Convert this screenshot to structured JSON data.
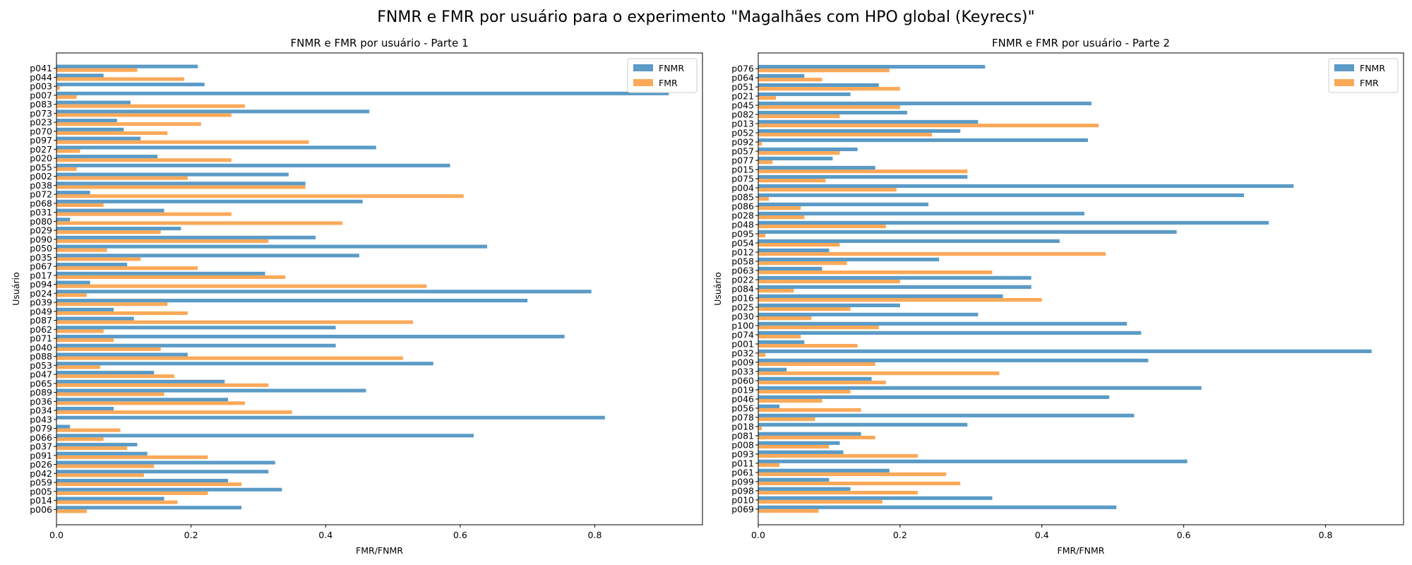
{
  "suptitle": "FNMR e FMR por usuário para o experimento \"Magalhães com HPO global (Keyrecs)\"",
  "colors": {
    "FNMR": "#5b9bc6",
    "FMR": "#fba959"
  },
  "chart_data": [
    {
      "type": "bar",
      "orientation": "horizontal",
      "title": "FNMR e FMR por usuário - Parte 1",
      "xlabel": "FMR/FNMR",
      "ylabel": "Usuário",
      "xlim": [
        0,
        0.96
      ],
      "xticks": [
        0.0,
        0.2,
        0.4,
        0.6,
        0.8
      ],
      "legend": [
        "FNMR",
        "FMR"
      ],
      "legend_position": "top-right",
      "categories": [
        "p041",
        "p044",
        "p003",
        "p007",
        "p083",
        "p073",
        "p023",
        "p070",
        "p097",
        "p027",
        "p020",
        "p055",
        "p002",
        "p038",
        "p072",
        "p068",
        "p031",
        "p080",
        "p029",
        "p090",
        "p050",
        "p035",
        "p067",
        "p017",
        "p094",
        "p024",
        "p039",
        "p049",
        "p087",
        "p062",
        "p071",
        "p040",
        "p088",
        "p053",
        "p047",
        "p065",
        "p089",
        "p036",
        "p034",
        "p043",
        "p079",
        "p066",
        "p037",
        "p091",
        "p026",
        "p042",
        "p059",
        "p005",
        "p014",
        "p006"
      ],
      "series": [
        {
          "name": "FNMR",
          "values": [
            0.21,
            0.07,
            0.22,
            0.91,
            0.11,
            0.465,
            0.09,
            0.1,
            0.125,
            0.475,
            0.15,
            0.585,
            0.345,
            0.37,
            0.05,
            0.455,
            0.16,
            0.02,
            0.185,
            0.385,
            0.64,
            0.45,
            0.105,
            0.31,
            0.05,
            0.795,
            0.7,
            0.085,
            0.115,
            0.415,
            0.755,
            0.415,
            0.195,
            0.56,
            0.145,
            0.25,
            0.46,
            0.255,
            0.085,
            0.815,
            0.02,
            0.62,
            0.12,
            0.135,
            0.325,
            0.315,
            0.255,
            0.335,
            0.16,
            0.275
          ]
        },
        {
          "name": "FMR",
          "values": [
            0.12,
            0.19,
            0.005,
            0.03,
            0.28,
            0.26,
            0.215,
            0.165,
            0.375,
            0.035,
            0.26,
            0.03,
            0.195,
            0.37,
            0.605,
            0.07,
            0.26,
            0.425,
            0.155,
            0.315,
            0.075,
            0.125,
            0.21,
            0.34,
            0.55,
            0.045,
            0.165,
            0.195,
            0.53,
            0.07,
            0.085,
            0.155,
            0.515,
            0.065,
            0.175,
            0.315,
            0.16,
            0.28,
            0.35,
            0.0,
            0.095,
            0.07,
            0.105,
            0.225,
            0.145,
            0.13,
            0.275,
            0.225,
            0.18,
            0.045
          ]
        }
      ]
    },
    {
      "type": "bar",
      "orientation": "horizontal",
      "title": "FNMR e FMR por usuário - Parte 2",
      "xlabel": "FMR/FNMR",
      "ylabel": "Usuário",
      "xlim": [
        0,
        0.91
      ],
      "xticks": [
        0.0,
        0.2,
        0.4,
        0.6,
        0.8
      ],
      "legend": [
        "FNMR",
        "FMR"
      ],
      "legend_position": "top-right",
      "categories": [
        "p076",
        "p064",
        "p051",
        "p021",
        "p045",
        "p082",
        "p013",
        "p052",
        "p092",
        "p057",
        "p077",
        "p015",
        "p075",
        "p004",
        "p085",
        "p086",
        "p028",
        "p048",
        "p095",
        "p054",
        "p012",
        "p058",
        "p063",
        "p022",
        "p084",
        "p016",
        "p025",
        "p030",
        "p100",
        "p074",
        "p001",
        "p032",
        "p009",
        "p033",
        "p060",
        "p019",
        "p046",
        "p056",
        "p078",
        "p018",
        "p081",
        "p008",
        "p093",
        "p011",
        "p061",
        "p099",
        "p098",
        "p010",
        "p069"
      ],
      "series": [
        {
          "name": "FNMR",
          "values": [
            0.32,
            0.065,
            0.17,
            0.13,
            0.47,
            0.21,
            0.31,
            0.285,
            0.465,
            0.14,
            0.105,
            0.165,
            0.295,
            0.755,
            0.685,
            0.24,
            0.46,
            0.72,
            0.59,
            0.425,
            0.1,
            0.255,
            0.09,
            0.385,
            0.385,
            0.345,
            0.2,
            0.31,
            0.52,
            0.54,
            0.065,
            0.865,
            0.55,
            0.04,
            0.16,
            0.625,
            0.495,
            0.03,
            0.53,
            0.295,
            0.145,
            0.115,
            0.12,
            0.605,
            0.185,
            0.1,
            0.13,
            0.33,
            0.505
          ]
        },
        {
          "name": "FMR",
          "values": [
            0.185,
            0.09,
            0.2,
            0.025,
            0.2,
            0.115,
            0.48,
            0.245,
            0.005,
            0.115,
            0.02,
            0.295,
            0.095,
            0.195,
            0.015,
            0.06,
            0.065,
            0.18,
            0.01,
            0.115,
            0.49,
            0.125,
            0.33,
            0.2,
            0.05,
            0.4,
            0.13,
            0.075,
            0.17,
            0.06,
            0.14,
            0.01,
            0.165,
            0.34,
            0.18,
            0.13,
            0.09,
            0.145,
            0.08,
            0.005,
            0.165,
            0.1,
            0.225,
            0.03,
            0.265,
            0.285,
            0.225,
            0.175,
            0.085
          ]
        }
      ]
    }
  ]
}
